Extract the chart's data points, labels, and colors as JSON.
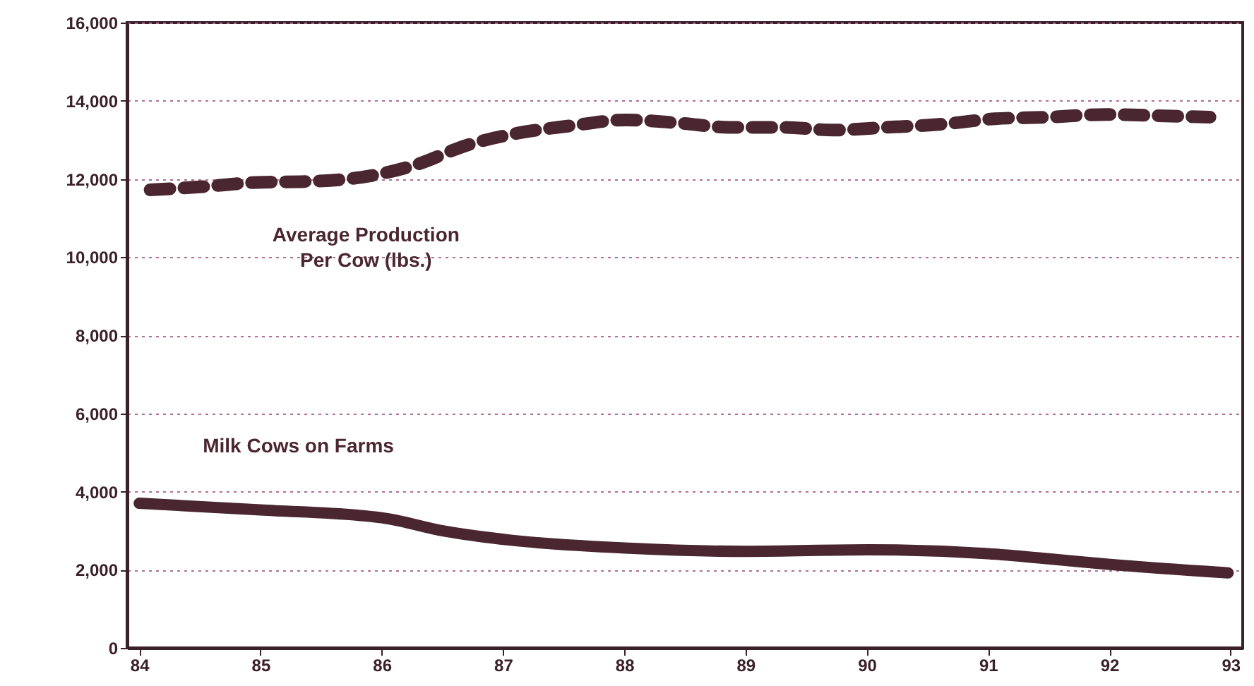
{
  "chart_data": {
    "type": "line",
    "xlim": [
      83.9,
      93.1
    ],
    "xticks": [
      84,
      85,
      86,
      87,
      88,
      89,
      90,
      91,
      92,
      93
    ],
    "ylim": [
      0,
      16000
    ],
    "yticks": [
      0,
      {
        "value": 2000,
        "label": "2,000"
      },
      {
        "value": 4000,
        "label": "4,000"
      },
      {
        "value": 6000,
        "label": "6,000"
      },
      {
        "value": 8000,
        "label": "8,000"
      },
      {
        "value": 10000,
        "label": "10,000"
      },
      {
        "value": 12000,
        "label": "12,000"
      },
      {
        "value": 14000,
        "label": "14,000"
      },
      {
        "value": 16000,
        "label": "16,000"
      }
    ],
    "grid": "y",
    "marker": "none",
    "series": [
      {
        "name": "Average Production Per Cow (lbs.)",
        "color": "#4a2630",
        "line_style": "dashed",
        "x": [
          84.09,
          84.52,
          84.97,
          85.43,
          85.87,
          86.27,
          86.71,
          87.12,
          87.56,
          88.02,
          88.45,
          88.87,
          89.31,
          89.72,
          90.16,
          90.62,
          91.06,
          91.49,
          91.97,
          92.37,
          92.83
        ],
        "values": [
          11720,
          11800,
          11910,
          11940,
          12060,
          12350,
          12870,
          13170,
          13360,
          13510,
          13430,
          13320,
          13320,
          13250,
          13320,
          13400,
          13540,
          13580,
          13650,
          13620,
          13580
        ]
      },
      {
        "name": "Milk Cows on Farms",
        "color": "#4a2630",
        "line_style": "solid",
        "x": [
          84,
          85,
          86,
          86.53,
          87.05,
          88.04,
          89.02,
          90.01,
          91,
          91.5,
          91.99,
          92.98
        ],
        "values": [
          3700,
          3530,
          3330,
          2980,
          2760,
          2550,
          2470,
          2510,
          2410,
          2280,
          2140,
          1920
        ]
      }
    ]
  }
}
